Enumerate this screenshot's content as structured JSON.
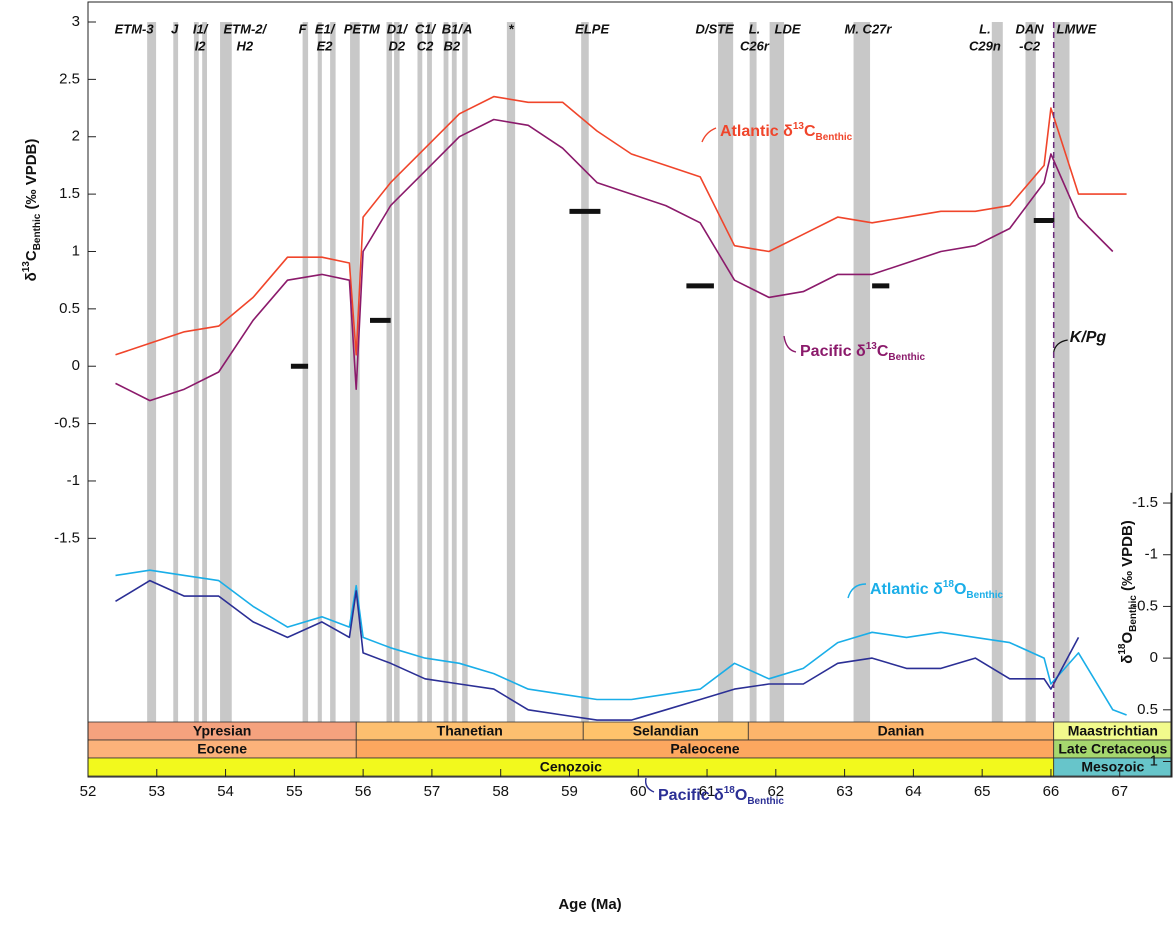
{
  "chart_data": {
    "type": "line",
    "x_label": "Age (Ma)",
    "y_label": {
      "pre": "δ",
      "sup": "13",
      "main": "C",
      "sub": "Benthic",
      "post": " (‰ VPDB)"
    },
    "y2_label": {
      "pre": "δ",
      "sup": "18",
      "main": "O",
      "sub": "Benthic",
      "post": " (‰ VPDB)"
    },
    "xlim": [
      52,
      67.76
    ],
    "xticks": [
      52,
      53,
      54,
      55,
      56,
      57,
      58,
      59,
      60,
      61,
      62,
      63,
      64,
      65,
      66,
      67
    ],
    "ylim": [
      -3.58,
      3
    ],
    "yticks": [
      3,
      2.5,
      2,
      1.5,
      1,
      0.5,
      0,
      -0.5,
      -1,
      -1.5
    ],
    "y2lim": [
      1.15,
      -1.6
    ],
    "y2ticks": [
      -1.5,
      -1,
      -0.5,
      0,
      0.5,
      1
    ],
    "x": [
      52.4,
      52.9,
      53.4,
      53.9,
      54.4,
      54.9,
      55.4,
      55.8,
      55.9,
      56.0,
      56.4,
      56.9,
      57.4,
      57.9,
      58.4,
      58.9,
      59.4,
      59.9,
      60.4,
      60.9,
      61.4,
      61.9,
      62.4,
      62.9,
      63.4,
      63.9,
      64.4,
      64.9,
      65.4,
      65.9,
      66.0,
      66.4,
      66.9,
      67.1
    ],
    "series": [
      {
        "name": "Atlantic δ13C",
        "color": "#f0452b",
        "axis": "y",
        "values": [
          0.1,
          0.2,
          0.3,
          0.35,
          0.6,
          0.95,
          0.95,
          0.9,
          0.1,
          1.3,
          1.6,
          1.9,
          2.2,
          2.35,
          2.3,
          2.3,
          2.05,
          1.85,
          1.75,
          1.65,
          1.05,
          1.0,
          1.15,
          1.3,
          1.25,
          1.3,
          1.35,
          1.35,
          1.4,
          1.75,
          2.25,
          1.5,
          1.5,
          1.5
        ]
      },
      {
        "name": "Pacific δ13C",
        "color": "#8b1a6b",
        "axis": "y",
        "values": [
          -0.15,
          -0.3,
          -0.2,
          -0.05,
          0.4,
          0.75,
          0.8,
          0.75,
          -0.2,
          1.0,
          1.4,
          1.7,
          2.0,
          2.15,
          2.1,
          1.9,
          1.6,
          1.5,
          1.4,
          1.25,
          0.75,
          0.6,
          0.65,
          0.8,
          0.8,
          0.9,
          1.0,
          1.05,
          1.2,
          1.6,
          1.85,
          1.3,
          1.0,
          null
        ]
      },
      {
        "name": "Atlantic δ18O",
        "color": "#1aaee8",
        "axis": "y2",
        "values": [
          -0.8,
          -0.85,
          -0.8,
          -0.75,
          -0.5,
          -0.3,
          -0.4,
          -0.3,
          -0.7,
          -0.2,
          -0.1,
          0.0,
          0.05,
          0.15,
          0.3,
          0.35,
          0.4,
          0.4,
          0.35,
          0.3,
          0.05,
          0.2,
          0.1,
          -0.15,
          -0.25,
          -0.2,
          -0.25,
          -0.2,
          -0.15,
          0.0,
          0.25,
          -0.05,
          0.5,
          0.55
        ]
      },
      {
        "name": "Pacific δ18O",
        "color": "#2b2f95",
        "axis": "y2",
        "values": [
          -0.55,
          -0.75,
          -0.6,
          -0.6,
          -0.35,
          -0.2,
          -0.35,
          -0.2,
          -0.65,
          -0.05,
          0.05,
          0.2,
          0.25,
          0.3,
          0.5,
          0.55,
          0.6,
          0.6,
          0.5,
          0.4,
          0.3,
          0.25,
          0.25,
          0.05,
          0.0,
          0.1,
          0.1,
          0.0,
          0.2,
          0.2,
          0.3,
          -0.2,
          null,
          null
        ]
      }
    ],
    "annotations": [
      {
        "pre": "Atlantic δ",
        "sup": "13",
        "main": "C",
        "sub": "Benthic",
        "color": "#f0452b"
      },
      {
        "pre": "Pacific δ",
        "sup": "13",
        "main": "C",
        "sub": "Benthic",
        "color": "#8b1a6b"
      },
      {
        "pre": "Atlantic δ",
        "sup": "18",
        "main": "O",
        "sub": "Benthic",
        "color": "#1aaee8"
      },
      {
        "pre": "Pacific δ",
        "sup": "18",
        "main": "O",
        "sub": "Benthic",
        "color": "#2b2f95"
      }
    ],
    "boundary": {
      "label": "K/Pg",
      "x": 66.04,
      "color": "#6a2a7a"
    },
    "bands": [
      [
        52.86,
        52.99
      ],
      [
        53.24,
        53.31
      ],
      [
        53.54,
        53.61
      ],
      [
        53.66,
        53.73
      ],
      [
        53.92,
        54.09
      ],
      [
        55.12,
        55.2
      ],
      [
        55.34,
        55.4
      ],
      [
        55.52,
        55.6
      ],
      [
        55.81,
        55.95
      ],
      [
        56.34,
        56.42
      ],
      [
        56.45,
        56.53
      ],
      [
        56.79,
        56.86
      ],
      [
        56.93,
        57.0
      ],
      [
        57.17,
        57.24
      ],
      [
        57.29,
        57.36
      ],
      [
        57.44,
        57.52
      ],
      [
        58.09,
        58.21
      ],
      [
        59.17,
        59.28
      ],
      [
        61.16,
        61.38
      ],
      [
        61.62,
        61.72
      ],
      [
        61.91,
        62.12
      ],
      [
        63.13,
        63.37
      ],
      [
        65.14,
        65.3
      ],
      [
        65.63,
        65.78
      ],
      [
        66.04,
        66.27
      ]
    ],
    "band_color": "#c8c8c8",
    "events": [
      {
        "x": 52.67,
        "lines": [
          "ETM-3"
        ]
      },
      {
        "x": 53.26,
        "lines": [
          "J"
        ]
      },
      {
        "x": 53.63,
        "lines": [
          "I1/",
          "I2"
        ]
      },
      {
        "x": 54.28,
        "lines": [
          "ETM-2/",
          "H2"
        ]
      },
      {
        "x": 55.12,
        "lines": [
          "F"
        ]
      },
      {
        "x": 55.44,
        "lines": [
          "E1/",
          "E2"
        ]
      },
      {
        "x": 55.98,
        "lines": [
          "PETM"
        ]
      },
      {
        "x": 56.49,
        "lines": [
          "D1/",
          "D2"
        ]
      },
      {
        "x": 56.9,
        "lines": [
          "C1/",
          "C2"
        ]
      },
      {
        "x": 57.29,
        "lines": [
          "B1/",
          "B2"
        ]
      },
      {
        "x": 57.52,
        "lines": [
          "A"
        ]
      },
      {
        "x": 58.15,
        "lines": [
          "*"
        ]
      },
      {
        "x": 59.33,
        "lines": [
          "ELPE"
        ]
      },
      {
        "x": 61.11,
        "lines": [
          "D/STE"
        ]
      },
      {
        "x": 61.69,
        "lines": [
          "L.",
          "C26r"
        ]
      },
      {
        "x": 62.17,
        "lines": [
          "LDE"
        ]
      },
      {
        "x": 63.34,
        "lines": [
          "M. C27r"
        ]
      },
      {
        "x": 65.04,
        "lines": [
          "L.",
          "C29n"
        ]
      },
      {
        "x": 65.69,
        "lines": [
          "DAN",
          "-C2"
        ]
      },
      {
        "x": 66.37,
        "lines": [
          "LMWE"
        ]
      }
    ],
    "markers": [
      {
        "x": [
          54.95,
          55.2
        ],
        "y": 0
      },
      {
        "x": [
          56.1,
          56.4
        ],
        "y": 0.4
      },
      {
        "x": [
          59.0,
          59.45
        ],
        "y": 1.35
      },
      {
        "x": [
          60.7,
          61.1
        ],
        "y": 0.7
      },
      {
        "x": [
          63.4,
          63.65
        ],
        "y": 0.7
      },
      {
        "x": [
          65.75,
          66.05
        ],
        "y": 1.27
      }
    ],
    "timescale": [
      [
        {
          "name": "Ypresian",
          "start": 52,
          "end": 55.9,
          "color": "#f5a27e"
        },
        {
          "name": "Thanetian",
          "start": 55.9,
          "end": 59.2,
          "color": "#fdbf6f"
        },
        {
          "name": "Selandian",
          "start": 59.2,
          "end": 61.6,
          "color": "#fec36b"
        },
        {
          "name": "Danian",
          "start": 61.6,
          "end": 66.04,
          "color": "#fdb56b"
        },
        {
          "name": "Maastrichtian",
          "start": 66.04,
          "end": 67.76,
          "color": "#f2fa8c"
        }
      ],
      [
        {
          "name": "Eocene",
          "start": 52,
          "end": 55.9,
          "color": "#fcb27a"
        },
        {
          "name": "Paleocene",
          "start": 55.9,
          "end": 66.04,
          "color": "#fda75f"
        },
        {
          "name": "Late Cretaceous",
          "start": 66.04,
          "end": 67.76,
          "color": "#a6d86e"
        }
      ],
      [
        {
          "name": "Cenozoic",
          "start": 52,
          "end": 66.04,
          "color": "#f2f91d"
        },
        {
          "name": "Mesozoic",
          "start": 66.04,
          "end": 67.76,
          "color": "#67c5ca"
        }
      ]
    ]
  }
}
